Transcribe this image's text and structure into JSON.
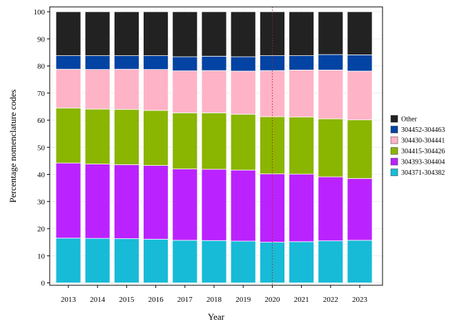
{
  "chart_data": {
    "type": "bar",
    "stacked": true,
    "xlabel": "Year",
    "ylabel": "Percentage nomenclature codes",
    "ylim": [
      0,
      100
    ],
    "yticks": [
      0,
      10,
      20,
      30,
      40,
      50,
      60,
      70,
      80,
      90,
      100
    ],
    "categories": [
      "2013",
      "2014",
      "2015",
      "2016",
      "2017",
      "2018",
      "2019",
      "2020",
      "2021",
      "2022",
      "2023"
    ],
    "reference_line": {
      "x": "2020",
      "style": "dotted",
      "color": "#B22222"
    },
    "legend_position": "right",
    "grid": true,
    "series": [
      {
        "name": "304371-304382",
        "color": "#17BBD7",
        "values": [
          16.5,
          16.4,
          16.3,
          16.1,
          15.7,
          15.6,
          15.4,
          15.0,
          15.2,
          15.5,
          15.7
        ]
      },
      {
        "name": "304393-304404",
        "color": "#BA23FF",
        "values": [
          27.7,
          27.4,
          27.3,
          27.2,
          26.3,
          26.3,
          26.2,
          25.2,
          24.9,
          23.6,
          22.8
        ]
      },
      {
        "name": "304415-304426",
        "color": "#8AB500",
        "values": [
          20.3,
          20.3,
          20.4,
          20.3,
          20.7,
          20.8,
          20.6,
          21.1,
          21.1,
          21.4,
          21.6
        ]
      },
      {
        "name": "304430-304441",
        "color": "#FFB3C6",
        "values": [
          14.3,
          14.6,
          14.8,
          15.1,
          15.5,
          15.6,
          15.9,
          17.0,
          17.3,
          18.0,
          18.0
        ]
      },
      {
        "name": "304452-304463",
        "color": "#0343A3",
        "values": [
          5.0,
          5.1,
          5.0,
          5.1,
          5.2,
          5.3,
          5.3,
          5.5,
          5.3,
          5.7,
          6.0
        ]
      },
      {
        "name": "Other",
        "color": "#222222",
        "values": [
          16.2,
          16.2,
          16.2,
          16.2,
          16.6,
          16.4,
          16.6,
          16.2,
          16.2,
          15.8,
          15.9
        ]
      }
    ]
  }
}
